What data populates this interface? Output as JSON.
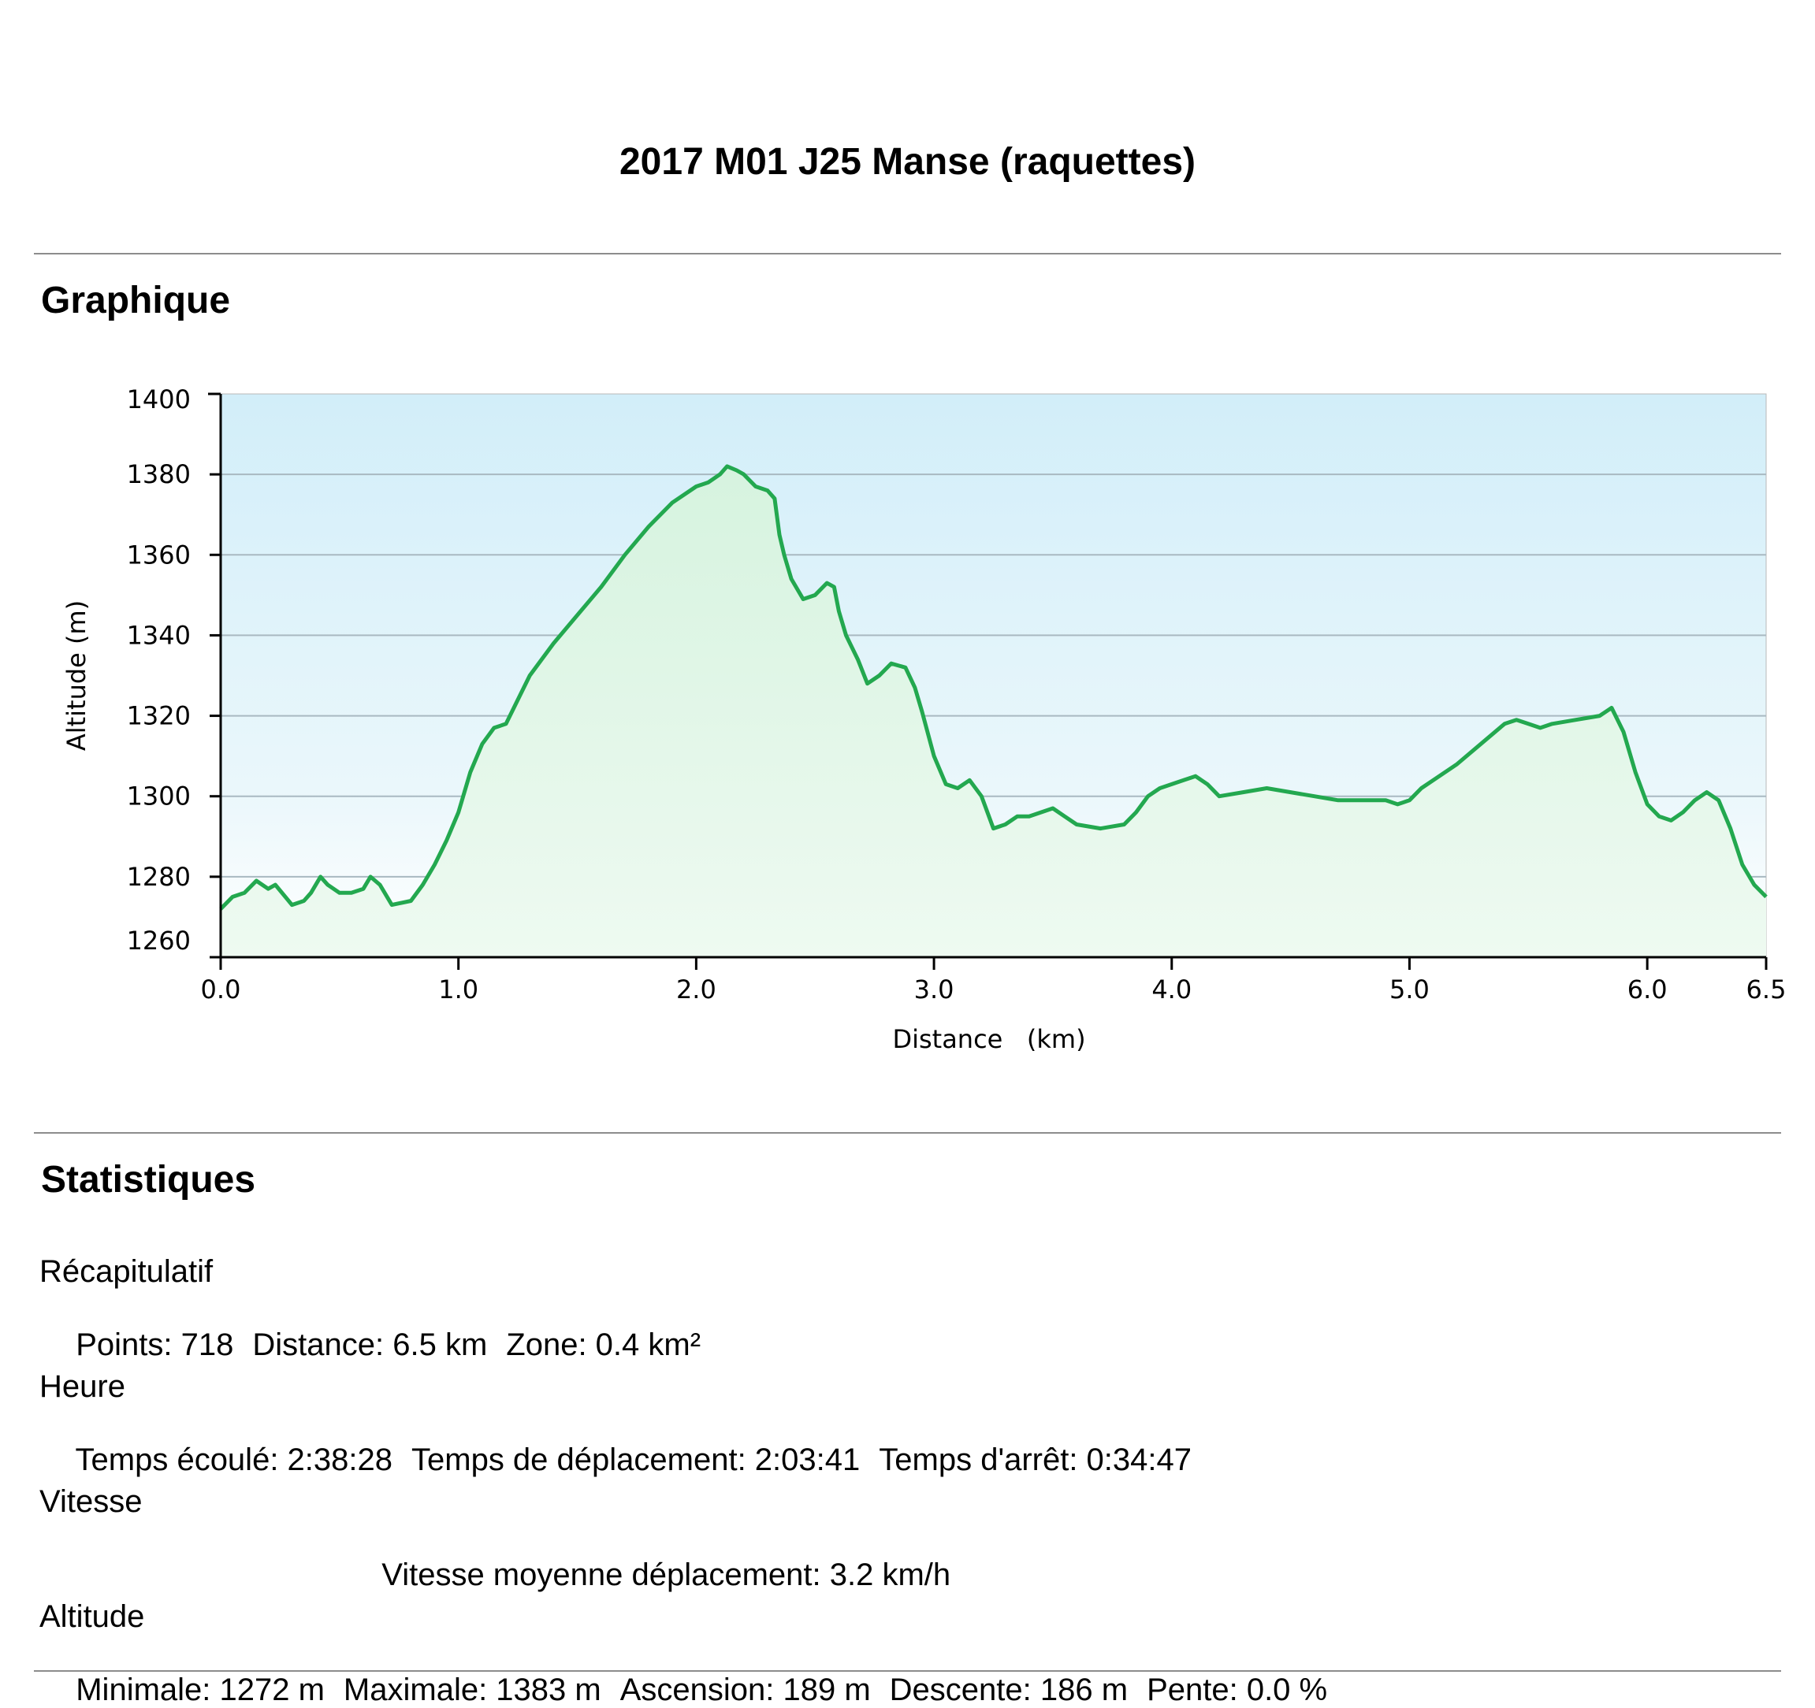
{
  "title": "2017 M01 J25 Manse (raquettes)",
  "sections": {
    "graph": "Graphique",
    "stats": "Statistiques"
  },
  "chart_data": {
    "type": "area",
    "xlabel": "Distance   (km)",
    "ylabel": "Altitude (m)",
    "xlim": [
      0,
      6.5
    ],
    "ylim": [
      1260,
      1400
    ],
    "xticks": [
      0.0,
      1.0,
      2.0,
      3.0,
      4.0,
      5.0,
      6.0,
      6.5
    ],
    "xtick_labels": [
      "0.0",
      "1.0",
      "2.0",
      "3.0",
      "4.0",
      "5.0",
      "6.0",
      "6.5"
    ],
    "yticks": [
      1260,
      1280,
      1300,
      1320,
      1340,
      1360,
      1380,
      1400
    ],
    "grid": true,
    "line_color": "#23a84f",
    "series": [
      {
        "x": [
          0.0,
          0.05,
          0.1,
          0.15,
          0.2,
          0.23,
          0.3,
          0.35,
          0.38,
          0.42,
          0.45,
          0.5,
          0.55,
          0.6,
          0.63,
          0.67,
          0.72,
          0.8,
          0.85,
          0.9,
          0.95,
          1.0,
          1.05,
          1.1,
          1.15,
          1.2,
          1.25,
          1.3,
          1.4,
          1.5,
          1.6,
          1.7,
          1.8,
          1.9,
          2.0,
          2.05,
          2.1,
          2.13,
          2.17,
          2.2,
          2.25,
          2.3,
          2.33,
          2.35,
          2.37,
          2.4,
          2.45,
          2.5,
          2.55,
          2.58,
          2.6,
          2.63,
          2.68,
          2.72,
          2.77,
          2.82,
          2.88,
          2.92,
          2.95,
          3.0,
          3.05,
          3.1,
          3.15,
          3.2,
          3.25,
          3.3,
          3.35,
          3.4,
          3.5,
          3.55,
          3.6,
          3.7,
          3.8,
          3.85,
          3.9,
          3.95,
          4.0,
          4.05,
          4.1,
          4.15,
          4.2,
          4.3,
          4.4,
          4.5,
          4.6,
          4.7,
          4.8,
          4.9,
          4.95,
          5.0,
          5.05,
          5.1,
          5.2,
          5.3,
          5.4,
          5.45,
          5.5,
          5.55,
          5.6,
          5.7,
          5.8,
          5.85,
          5.9,
          5.95,
          6.0,
          6.05,
          6.1,
          6.15,
          6.2,
          6.25,
          6.3,
          6.35,
          6.4,
          6.45,
          6.5
        ],
        "y": [
          1272,
          1275,
          1276,
          1279,
          1277,
          1278,
          1273,
          1274,
          1276,
          1280,
          1278,
          1276,
          1276,
          1277,
          1280,
          1278,
          1273,
          1274,
          1278,
          1283,
          1289,
          1296,
          1306,
          1313,
          1317,
          1318,
          1324,
          1330,
          1338,
          1345,
          1352,
          1360,
          1367,
          1373,
          1377,
          1378,
          1380,
          1382,
          1381,
          1380,
          1377,
          1376,
          1374,
          1365,
          1360,
          1354,
          1349,
          1350,
          1353,
          1352,
          1346,
          1340,
          1334,
          1328,
          1330,
          1333,
          1332,
          1327,
          1321,
          1310,
          1303,
          1302,
          1304,
          1300,
          1292,
          1293,
          1295,
          1295,
          1297,
          1295,
          1293,
          1292,
          1293,
          1296,
          1300,
          1302,
          1303,
          1304,
          1305,
          1303,
          1300,
          1301,
          1302,
          1301,
          1300,
          1299,
          1299,
          1299,
          1298,
          1299,
          1302,
          1304,
          1308,
          1313,
          1318,
          1319,
          1318,
          1317,
          1318,
          1319,
          1320,
          1322,
          1316,
          1306,
          1298,
          1295,
          1294,
          1296,
          1299,
          1301,
          1299,
          1292,
          1283,
          1278,
          1275
        ]
      }
    ]
  },
  "stats": {
    "recap": {
      "title": "Récapitulatif",
      "points": "Points: 718",
      "distance": "Distance: 6.5 km",
      "zone": "Zone: 0.4 km²"
    },
    "time": {
      "title": "Heure",
      "elapsed": "Temps écoulé: 2:38:28",
      "moving": "Temps de déplacement: 2:03:41",
      "stopped": "Temps d'arrêt: 0:34:47"
    },
    "speed": {
      "title": "Vitesse",
      "moving_avg": "Vitesse moyenne déplacement: 3.2 km/h"
    },
    "altitude": {
      "title": "Altitude",
      "min": "Minimale: 1272 m",
      "max": "Maximale: 1383 m",
      "ascent": "Ascension: 189 m",
      "descent": "Descente: 186 m",
      "slope": "Pente: 0.0 %"
    }
  }
}
